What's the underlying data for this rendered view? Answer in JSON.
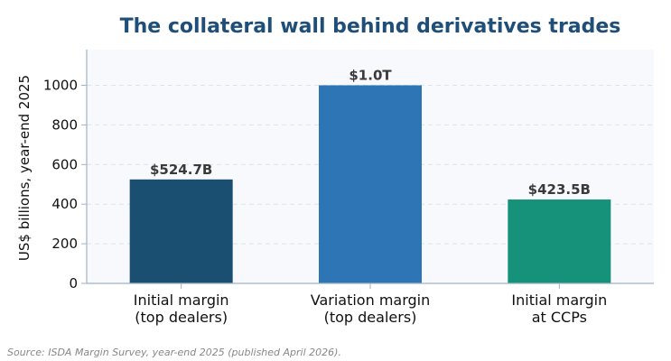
{
  "chart_data": {
    "type": "bar",
    "title": "The collateral wall behind derivatives trades",
    "xlabel": "",
    "ylabel": "US$ billions, year-end 2025",
    "categories": [
      [
        "Initial margin",
        "(top dealers)"
      ],
      [
        "Variation margin",
        "(top dealers)"
      ],
      [
        "Initial margin",
        "at CCPs"
      ]
    ],
    "values": [
      524.7,
      1000,
      423.5
    ],
    "data_labels": [
      "$524.7B",
      "$1.0T",
      "$423.5B"
    ],
    "bar_colors": [
      "#1b4f72",
      "#2e75b6",
      "#16917a"
    ],
    "ylim": [
      0,
      1180
    ],
    "yticks": [
      0,
      200,
      400,
      600,
      800,
      1000
    ],
    "grid": true,
    "title_color": "#1f4e79",
    "plot_background": "#f7f9fc"
  },
  "footer": {
    "source": "Source: ISDA Margin Survey, year-end 2025 (published April 2026)."
  }
}
